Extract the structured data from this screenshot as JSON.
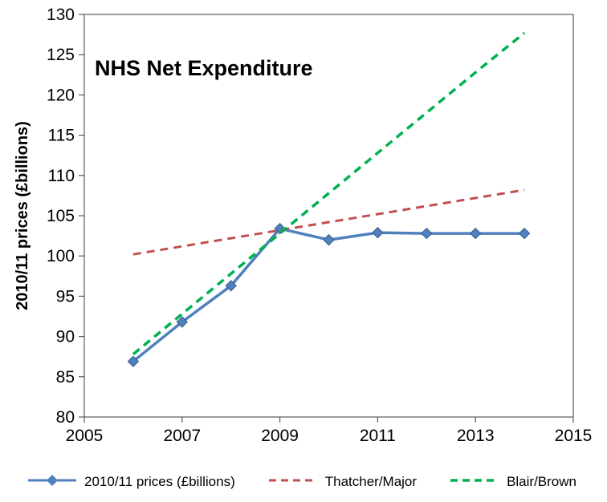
{
  "chart_data": {
    "type": "line",
    "title": "NHS Net Expenditure",
    "xlabel": "",
    "ylabel": "2010/11 prices (£billions)",
    "xlim": [
      2005,
      2015
    ],
    "ylim": [
      80,
      130
    ],
    "x_ticks": [
      2005,
      2007,
      2009,
      2011,
      2013,
      2015
    ],
    "y_ticks": [
      80,
      85,
      90,
      95,
      100,
      105,
      110,
      115,
      120,
      125,
      130
    ],
    "grid": false,
    "legend_position": "bottom",
    "axis_color": "#595959",
    "x": [
      2006,
      2007,
      2008,
      2009,
      2010,
      2011,
      2012,
      2013,
      2014
    ],
    "series": [
      {
        "name": "2010/11 prices (£billions)",
        "color": "#4F81BD",
        "style": "solid",
        "marker": "diamond",
        "line_width": 3.5,
        "values": [
          86.9,
          91.8,
          96.3,
          103.4,
          102.0,
          102.9,
          102.8,
          102.8,
          102.8
        ]
      },
      {
        "name": "Thatcher/Major",
        "color": "#C0504D",
        "style": "dashed",
        "marker": "none",
        "line_width": 3,
        "values": [
          100.2,
          101.2,
          102.2,
          103.2,
          104.2,
          105.2,
          106.2,
          107.2,
          108.2
        ]
      },
      {
        "name": "Blair/Brown",
        "color": "#00B050",
        "style": "dashed",
        "marker": "none",
        "line_width": 3.5,
        "values": [
          87.8,
          92.8,
          97.8,
          102.8,
          107.8,
          112.8,
          117.8,
          122.8,
          127.7
        ]
      }
    ]
  }
}
